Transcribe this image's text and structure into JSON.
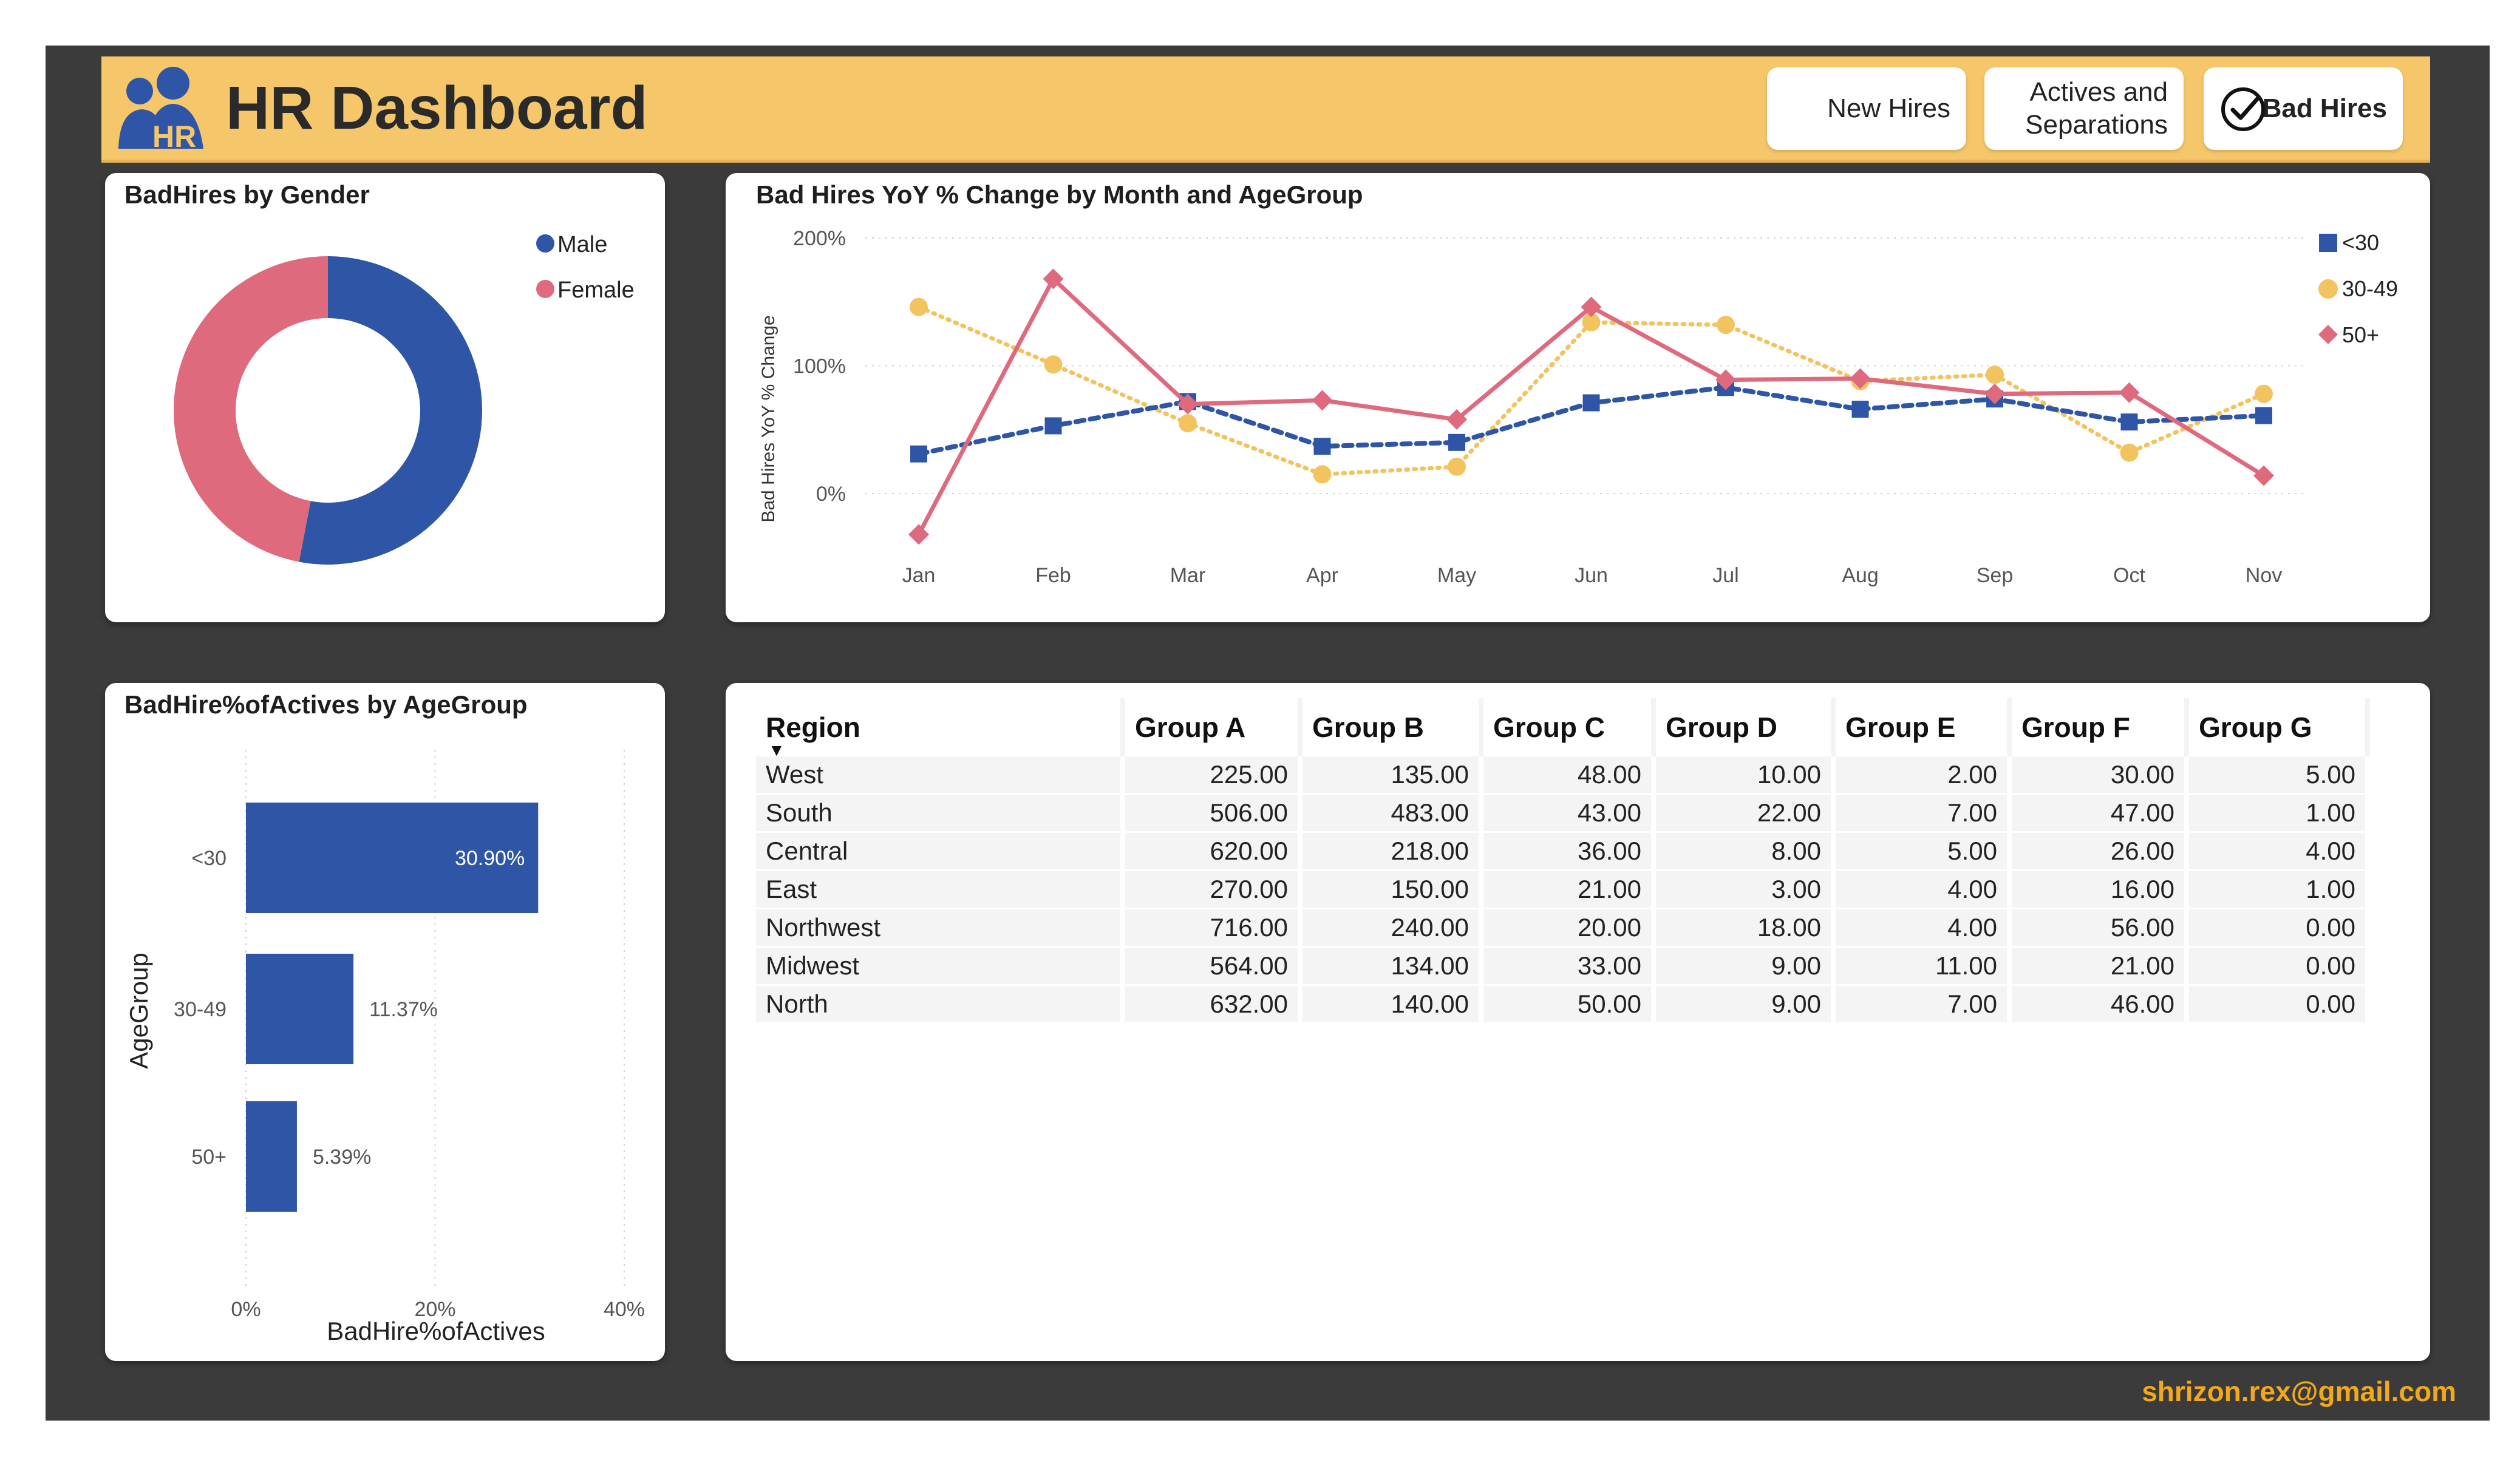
{
  "header": {
    "title": "HR Dashboard",
    "logo_text": "HR",
    "nav": [
      {
        "label_line1": "New Hires",
        "label_line2": ""
      },
      {
        "label_line1": "Actives and",
        "label_line2": "Separations"
      },
      {
        "label_line1": "Bad Hires",
        "label_line2": ""
      }
    ],
    "active_nav": "Bad Hires"
  },
  "colors": {
    "header": "#f6c66a",
    "blue": "#2f56a6",
    "pink": "#df6a7e",
    "yellow": "#f3c35f",
    "email": "#f2a81d"
  },
  "gender_card": {
    "title": "BadHires by Gender",
    "legend": [
      "Male",
      "Female"
    ]
  },
  "line_card": {
    "title": "Bad Hires YoY % Change by Month and AgeGroup",
    "ylabel": "Bad Hires YoY % Change",
    "yticks": [
      "200%",
      "100%",
      "0%"
    ],
    "legend": [
      "<30",
      "30-49",
      "50+"
    ]
  },
  "bar_card": {
    "title": "BadHire%ofActives by AgeGroup",
    "ylabel": "AgeGroup",
    "xlabel": "BadHire%ofActives",
    "xticks": [
      "0%",
      "20%",
      "40%"
    ],
    "labels": [
      "30.90%",
      "11.37%",
      "5.39%"
    ]
  },
  "chart_data": [
    {
      "type": "pie",
      "title": "BadHires by Gender",
      "categories": [
        "Male",
        "Female"
      ],
      "values": [
        53,
        47
      ],
      "colors": [
        "#2f56a6",
        "#df6a7e"
      ]
    },
    {
      "type": "line",
      "title": "Bad Hires YoY % Change by Month and AgeGroup",
      "ylabel": "Bad Hires YoY % Change",
      "x": [
        "Jan",
        "Feb",
        "Mar",
        "Apr",
        "May",
        "Jun",
        "Jul",
        "Aug",
        "Sep",
        "Oct",
        "Nov"
      ],
      "ylim": [
        -60,
        200
      ],
      "series": [
        {
          "name": "<30",
          "values": [
            31,
            53,
            72,
            37,
            40,
            71,
            83,
            66,
            74,
            56,
            61
          ]
        },
        {
          "name": "30-49",
          "values": [
            146,
            101,
            55,
            15,
            21,
            134,
            132,
            88,
            93,
            32,
            78
          ]
        },
        {
          "name": "50+",
          "values": [
            -32,
            168,
            70,
            73,
            58,
            146,
            89,
            90,
            78,
            79,
            14
          ]
        }
      ]
    },
    {
      "type": "bar",
      "title": "BadHire%ofActives by AgeGroup",
      "xlabel": "BadHire%ofActives",
      "ylabel": "AgeGroup",
      "categories": [
        "<30",
        "30-49",
        "50+"
      ],
      "values": [
        30.9,
        11.37,
        5.39
      ],
      "xlim": [
        0,
        40
      ]
    },
    {
      "type": "table",
      "columns": [
        "Region",
        "Group A",
        "Group B",
        "Group C",
        "Group D",
        "Group E",
        "Group F",
        "Group G"
      ],
      "rows": [
        [
          "West",
          "225.00",
          "135.00",
          "48.00",
          "10.00",
          "2.00",
          "30.00",
          "5.00"
        ],
        [
          "South",
          "506.00",
          "483.00",
          "43.00",
          "22.00",
          "7.00",
          "47.00",
          "1.00"
        ],
        [
          "Central",
          "620.00",
          "218.00",
          "36.00",
          "8.00",
          "5.00",
          "26.00",
          "4.00"
        ],
        [
          "East",
          "270.00",
          "150.00",
          "21.00",
          "3.00",
          "4.00",
          "16.00",
          "1.00"
        ],
        [
          "Northwest",
          "716.00",
          "240.00",
          "20.00",
          "18.00",
          "4.00",
          "56.00",
          "0.00"
        ],
        [
          "Midwest",
          "564.00",
          "134.00",
          "33.00",
          "9.00",
          "11.00",
          "21.00",
          "0.00"
        ],
        [
          "North",
          "632.00",
          "140.00",
          "50.00",
          "9.00",
          "7.00",
          "46.00",
          "0.00"
        ]
      ]
    }
  ],
  "footer": {
    "email": "shrizon.rex@gmail.com"
  }
}
